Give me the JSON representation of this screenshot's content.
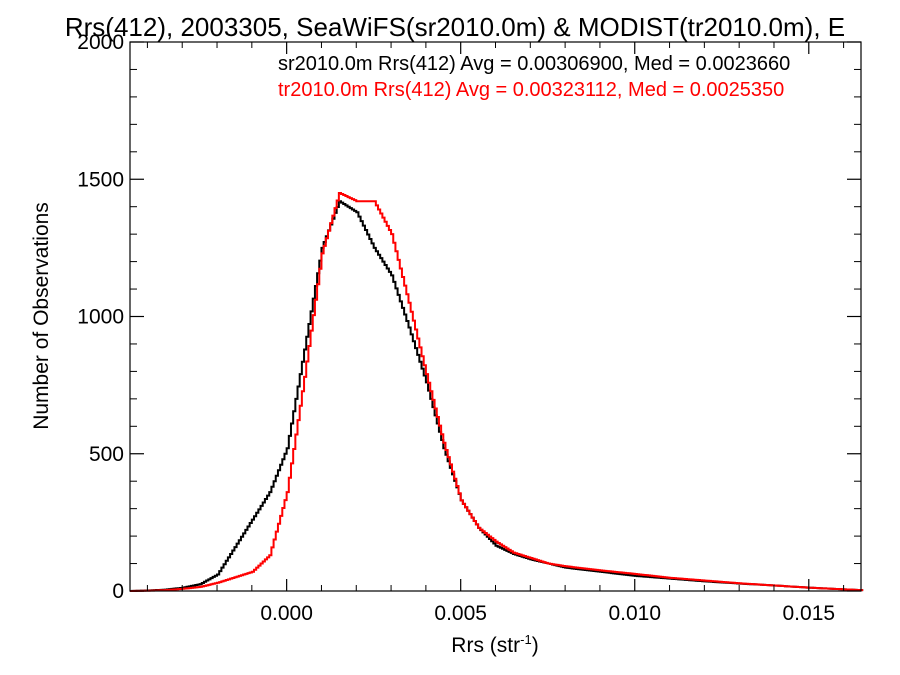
{
  "chart_data": {
    "type": "line",
    "title": "Rrs(412), 2003305, SeaWiFS(sr2010.0m) & MODIST(tr2010.0m), E",
    "xlabel": "Rrs (str",
    "xlabel_sup": "-1",
    "xlabel_suffix": ")",
    "ylabel": "Number of Observations",
    "xlim": [
      -0.0045,
      0.0165
    ],
    "ylim": [
      0,
      2000
    ],
    "grid": false,
    "xticks": [
      0.0,
      0.005,
      0.01,
      0.015
    ],
    "xtick_labels": [
      "0.000",
      "0.005",
      "0.010",
      "0.015"
    ],
    "yticks": [
      0,
      500,
      1000,
      1500,
      2000
    ],
    "ytick_labels": [
      "0",
      "500",
      "1000",
      "1500",
      "2000"
    ],
    "annotations": [
      {
        "text": "sr2010.0m Rrs(412) Avg = 0.00306900, Med = 0.0023660",
        "color": "#000000"
      },
      {
        "text": "tr2010.0m Rrs(412) Avg = 0.00323112, Med = 0.0025350",
        "color": "#ff0000"
      }
    ],
    "series": [
      {
        "color": "#000000",
        "x": [
          -0.0045,
          -0.004,
          -0.0035,
          -0.003,
          -0.0025,
          -0.002,
          -0.0015,
          -0.001,
          -0.0005,
          0.0,
          0.0005,
          0.001,
          0.0015,
          0.002,
          0.0025,
          0.003,
          0.0035,
          0.004,
          0.0045,
          0.005,
          0.0055,
          0.006,
          0.0065,
          0.007,
          0.0075,
          0.008,
          0.009,
          0.01,
          0.011,
          0.012,
          0.013,
          0.014,
          0.015,
          0.016,
          0.0165
        ],
        "values": [
          0,
          2,
          5,
          12,
          25,
          60,
          160,
          260,
          360,
          520,
          880,
          1250,
          1420,
          1380,
          1250,
          1150,
          960,
          760,
          520,
          330,
          230,
          165,
          135,
          115,
          100,
          85,
          70,
          55,
          45,
          35,
          27,
          20,
          12,
          6,
          3
        ]
      },
      {
        "color": "#ff0000",
        "x": [
          -0.0045,
          -0.004,
          -0.0035,
          -0.003,
          -0.0025,
          -0.002,
          -0.0015,
          -0.001,
          -0.0005,
          0.0,
          0.0005,
          0.001,
          0.0015,
          0.002,
          0.0025,
          0.003,
          0.0035,
          0.004,
          0.0045,
          0.005,
          0.0055,
          0.006,
          0.0065,
          0.007,
          0.0075,
          0.008,
          0.009,
          0.01,
          0.011,
          0.012,
          0.013,
          0.014,
          0.015,
          0.016,
          0.0165
        ],
        "values": [
          0,
          1,
          3,
          8,
          15,
          30,
          50,
          70,
          130,
          360,
          780,
          1230,
          1450,
          1420,
          1420,
          1300,
          1050,
          790,
          540,
          330,
          230,
          180,
          140,
          120,
          100,
          90,
          75,
          62,
          48,
          38,
          28,
          20,
          12,
          6,
          3
        ]
      }
    ]
  }
}
